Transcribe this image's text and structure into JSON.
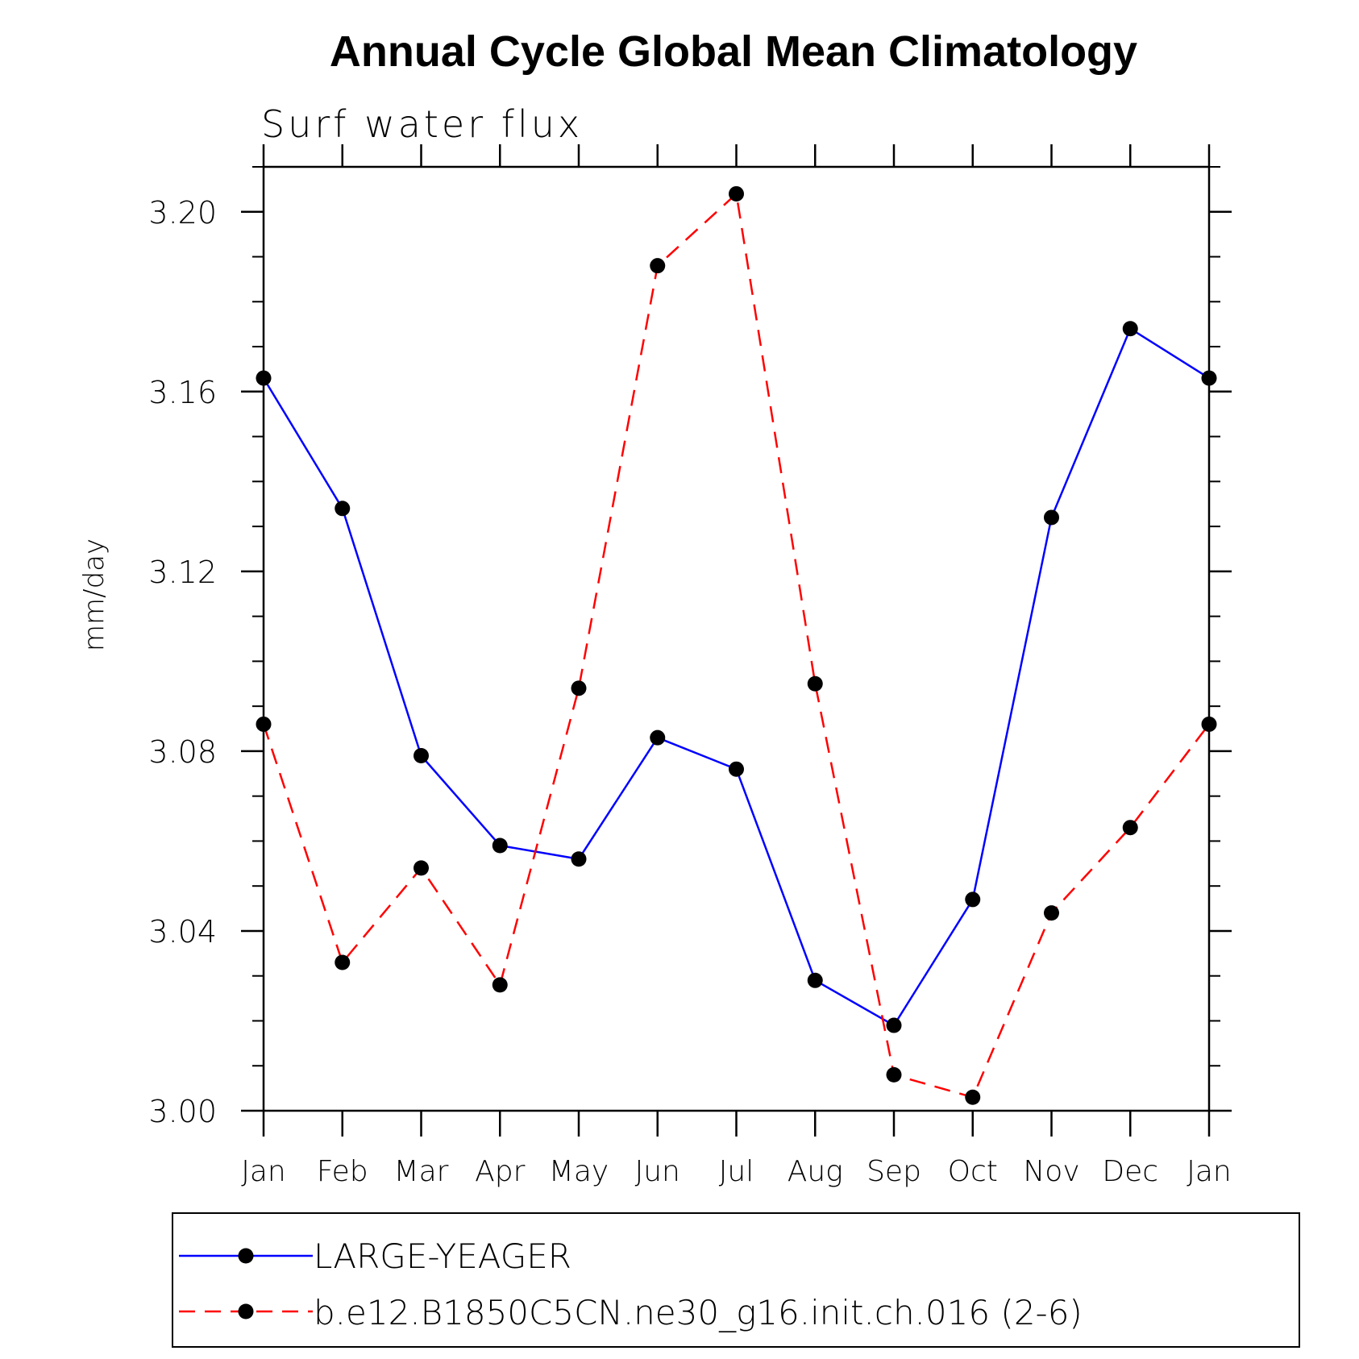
{
  "chart_data": {
    "type": "line",
    "title": "Annual Cycle Global Mean Climatology",
    "subtitle": "Surf water flux",
    "ylabel": "mm/day",
    "xlabel": "",
    "categories": [
      "Jan",
      "Feb",
      "Mar",
      "Apr",
      "May",
      "Jun",
      "Jul",
      "Aug",
      "Sep",
      "Oct",
      "Nov",
      "Dec",
      "Jan"
    ],
    "ylim": [
      3.0,
      3.21
    ],
    "yticks": [
      3.0,
      3.04,
      3.08,
      3.12,
      3.16,
      3.2
    ],
    "ytick_labels": [
      "3.00",
      "3.04",
      "3.08",
      "3.12",
      "3.16",
      "3.20"
    ],
    "series": [
      {
        "name": "LARGE-YEAGER",
        "color": "#0000ff",
        "dash": "solid",
        "values": [
          3.163,
          3.134,
          3.079,
          3.059,
          3.056,
          3.083,
          3.076,
          3.029,
          3.019,
          3.047,
          3.132,
          3.174,
          3.163
        ]
      },
      {
        "name": "b.e12.B1850C5CN.ne30_g16.init.ch.016 (2-6)",
        "color": "#ff0000",
        "dash": "dashed",
        "values": [
          3.086,
          3.033,
          3.054,
          3.028,
          3.094,
          3.188,
          3.204,
          3.095,
          3.008,
          3.003,
          3.044,
          3.063,
          3.086
        ]
      }
    ],
    "marker_color": "#000000",
    "legend_position": "bottom"
  }
}
